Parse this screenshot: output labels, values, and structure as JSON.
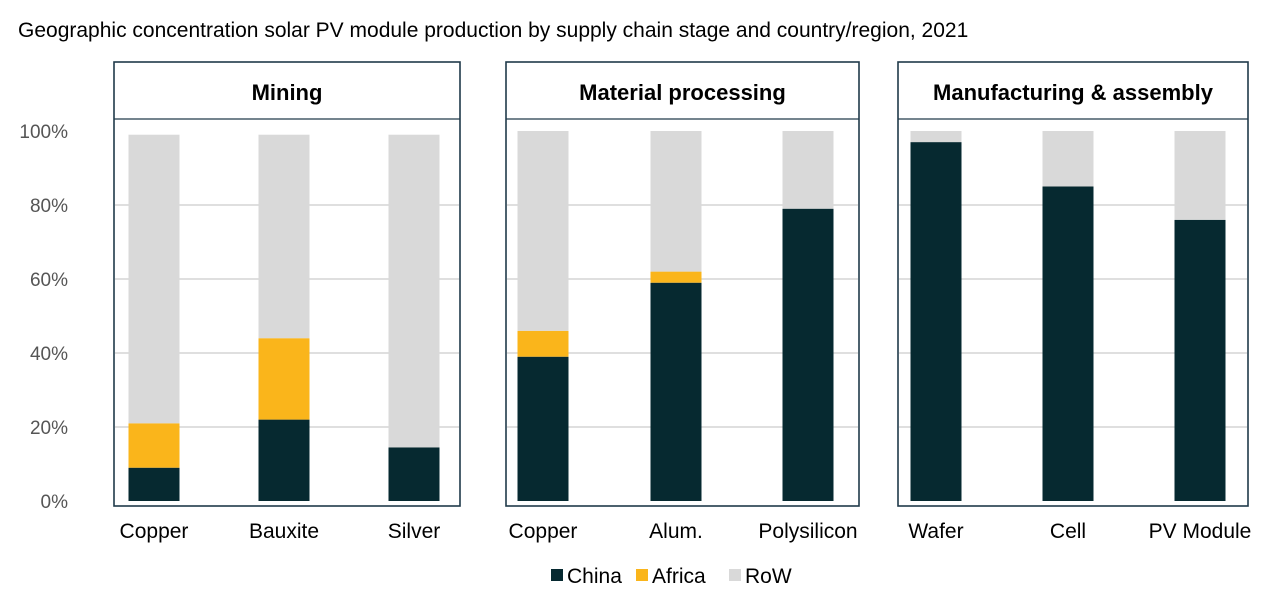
{
  "chart_data": {
    "type": "bar",
    "stacked": true,
    "title": "Geographic concentration solar PV module production by supply chain stage and country/region, 2021",
    "ylim": [
      0,
      100
    ],
    "y_ticks": [
      0,
      20,
      40,
      60,
      80,
      100
    ],
    "y_tick_labels": [
      "0%",
      "20%",
      "40%",
      "60%",
      "80%",
      "100%"
    ],
    "grid": true,
    "legend_position": "bottom-center",
    "colors": {
      "China": "#062930",
      "Africa": "#fab51b",
      "RoW": "#d9d9d9"
    },
    "legend": [
      "China",
      "Africa",
      "RoW"
    ],
    "panels": [
      {
        "name": "Mining",
        "categories": [
          "Copper",
          "Bauxite",
          "Silver"
        ],
        "series": [
          {
            "name": "China",
            "values": [
              9,
              22,
              14.5
            ]
          },
          {
            "name": "Africa",
            "values": [
              12,
              22,
              0
            ]
          },
          {
            "name": "RoW",
            "values": [
              78,
              55,
              84.5
            ]
          }
        ]
      },
      {
        "name": "Material processing",
        "categories": [
          "Copper",
          "Alum.",
          "Polysilicon"
        ],
        "series": [
          {
            "name": "China",
            "values": [
              39,
              59,
              79
            ]
          },
          {
            "name": "Africa",
            "values": [
              7,
              3,
              0
            ]
          },
          {
            "name": "RoW",
            "values": [
              54,
              38,
              21
            ]
          }
        ]
      },
      {
        "name": "Manufacturing & assembly",
        "categories": [
          "Wafer",
          "Cell",
          "PV Module"
        ],
        "series": [
          {
            "name": "China",
            "values": [
              97,
              85,
              76
            ]
          },
          {
            "name": "Africa",
            "values": [
              0,
              0,
              0
            ]
          },
          {
            "name": "RoW",
            "values": [
              3,
              15,
              24
            ]
          }
        ]
      }
    ]
  }
}
